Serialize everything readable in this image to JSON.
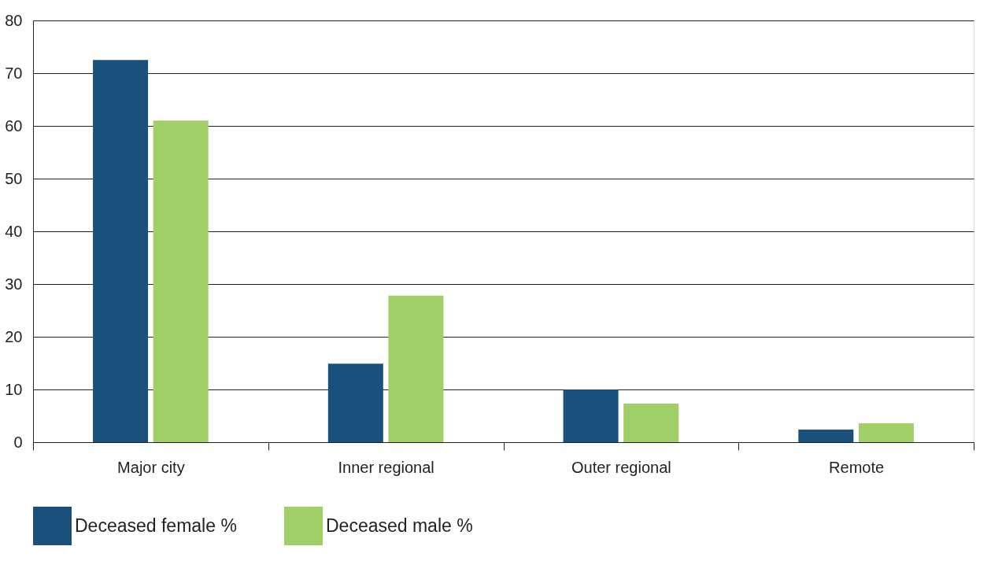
{
  "chart_data": {
    "type": "bar",
    "categories": [
      "Major city",
      "Inner regional",
      "Outer regional",
      "Remote"
    ],
    "series": [
      {
        "name": "Deceased female %",
        "color": "#19507c",
        "values": [
          72.5,
          14.9,
          10.0,
          2.4
        ]
      },
      {
        "name": "Deceased male %",
        "color": "#a0ce67",
        "values": [
          61.0,
          27.8,
          7.3,
          3.6
        ]
      }
    ],
    "ylim": [
      0,
      80
    ],
    "yticks": [
      0,
      10,
      20,
      30,
      40,
      50,
      60,
      70,
      80
    ],
    "grid": "y",
    "legend": "bottom"
  }
}
